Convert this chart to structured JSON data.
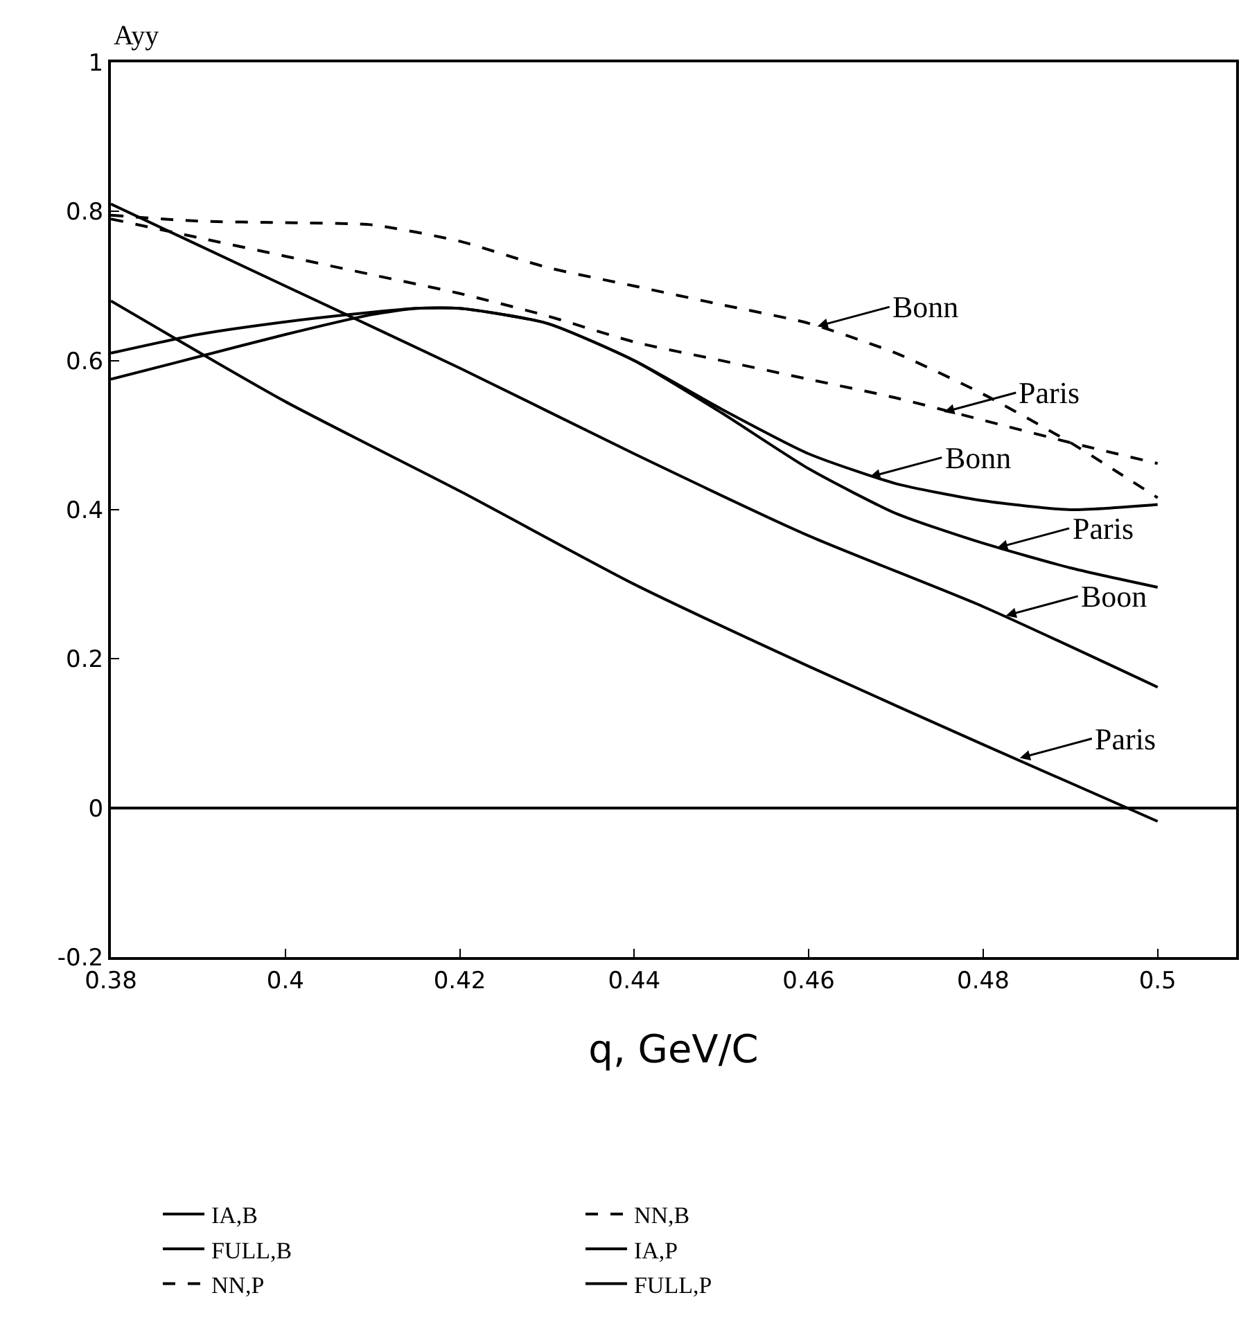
{
  "chart_data": {
    "type": "line",
    "xlabel": "q, GeV/C",
    "ylabel": "Ayy",
    "xlim": [
      0.38,
      0.509
    ],
    "ylim": [
      -0.2,
      1
    ],
    "xticks": [
      0.38,
      0.4,
      0.42,
      0.44,
      0.46,
      0.48,
      0.5
    ],
    "yticks": [
      -0.2,
      0,
      0.2,
      0.4,
      0.6,
      0.8,
      1
    ],
    "grid": false,
    "legend": "bottom",
    "marker": "none",
    "series": [
      {
        "name": "IA,B",
        "color": "#000000",
        "line_style": "solid",
        "x": [
          0.38,
          0.4,
          0.42,
          0.44,
          0.46,
          0.48,
          0.5
        ],
        "values": [
          0.81,
          0.7,
          0.59,
          0.475,
          0.365,
          0.27,
          0.162
        ]
      },
      {
        "name": "NN,B",
        "color": "#000000",
        "line_style": "dashed",
        "x": [
          0.38,
          0.39,
          0.4,
          0.41,
          0.42,
          0.43,
          0.44,
          0.45,
          0.46,
          0.47,
          0.48,
          0.49,
          0.5
        ],
        "values": [
          0.795,
          0.787,
          0.785,
          0.782,
          0.76,
          0.725,
          0.7,
          0.675,
          0.65,
          0.61,
          0.555,
          0.49,
          0.416
        ]
      },
      {
        "name": "FULL,B",
        "color": "#000000",
        "line_style": "solid",
        "x": [
          0.38,
          0.39,
          0.4,
          0.41,
          0.415,
          0.42,
          0.43,
          0.44,
          0.45,
          0.46,
          0.47,
          0.48,
          0.49,
          0.5
        ],
        "values": [
          0.61,
          0.635,
          0.652,
          0.665,
          0.67,
          0.67,
          0.65,
          0.6,
          0.535,
          0.475,
          0.435,
          0.412,
          0.4,
          0.407
        ]
      },
      {
        "name": "IA,P",
        "color": "#000000",
        "line_style": "solid",
        "x": [
          0.38,
          0.4,
          0.42,
          0.44,
          0.46,
          0.48,
          0.5
        ],
        "values": [
          0.68,
          0.545,
          0.425,
          0.3,
          0.19,
          0.085,
          -0.018
        ]
      },
      {
        "name": "NN,P",
        "color": "#000000",
        "line_style": "dashed",
        "x": [
          0.38,
          0.39,
          0.4,
          0.41,
          0.42,
          0.43,
          0.44,
          0.45,
          0.46,
          0.47,
          0.48,
          0.49,
          0.5
        ],
        "values": [
          0.79,
          0.765,
          0.74,
          0.715,
          0.69,
          0.66,
          0.625,
          0.6,
          0.575,
          0.55,
          0.52,
          0.49,
          0.462
        ]
      },
      {
        "name": "FULL,P",
        "color": "#000000",
        "line_style": "solid",
        "x": [
          0.38,
          0.39,
          0.4,
          0.41,
          0.415,
          0.42,
          0.43,
          0.44,
          0.45,
          0.46,
          0.47,
          0.48,
          0.49,
          0.5
        ],
        "values": [
          0.575,
          0.605,
          0.635,
          0.662,
          0.67,
          0.67,
          0.65,
          0.6,
          0.53,
          0.455,
          0.395,
          0.355,
          0.322,
          0.296
        ]
      }
    ],
    "ref_lines": [
      {
        "axis": "y",
        "value": 0,
        "color": "#000000",
        "line_style": "solid"
      }
    ],
    "annotations": [
      {
        "text": "Bonn",
        "x": 0.461,
        "y": 0.646
      },
      {
        "text": "Paris",
        "x": 0.4755,
        "y": 0.531
      },
      {
        "text": "Bonn",
        "x": 0.467,
        "y": 0.444
      },
      {
        "text": "Paris",
        "x": 0.4816,
        "y": 0.349
      },
      {
        "text": "Boon",
        "x": 0.4826,
        "y": 0.258
      },
      {
        "text": "Paris",
        "x": 0.4842,
        "y": 0.067
      }
    ]
  }
}
